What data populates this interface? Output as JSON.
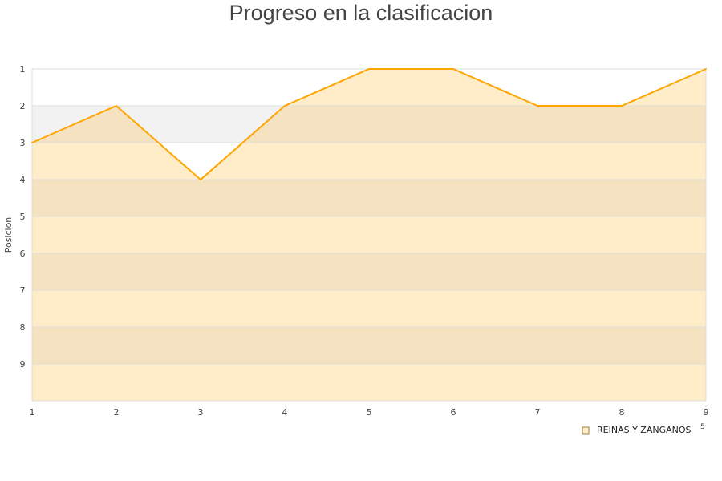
{
  "chart_data": {
    "type": "area",
    "title": "Progreso en la clasificacion",
    "xlabel": "",
    "ylabel": "Posicion",
    "x": [
      1,
      2,
      3,
      4,
      5,
      6,
      7,
      8,
      9
    ],
    "y_ticks": [
      1,
      2,
      3,
      4,
      5,
      6,
      7,
      8,
      9
    ],
    "ylim": [
      1,
      10
    ],
    "y_inverted": true,
    "grid": true,
    "legend_position": "bottom-right",
    "series": [
      {
        "name": "REINAS Y ZANGANOS",
        "values": [
          3,
          2,
          4,
          2,
          1,
          1,
          2,
          2,
          1
        ],
        "color": "#ffa500",
        "fill": "#ffecc8"
      }
    ],
    "legend_extra": "5",
    "colors": {
      "band_alt": "#f2f2f2",
      "fill_band_alt": "#f5e2c0",
      "grid": "#dddddd"
    }
  }
}
